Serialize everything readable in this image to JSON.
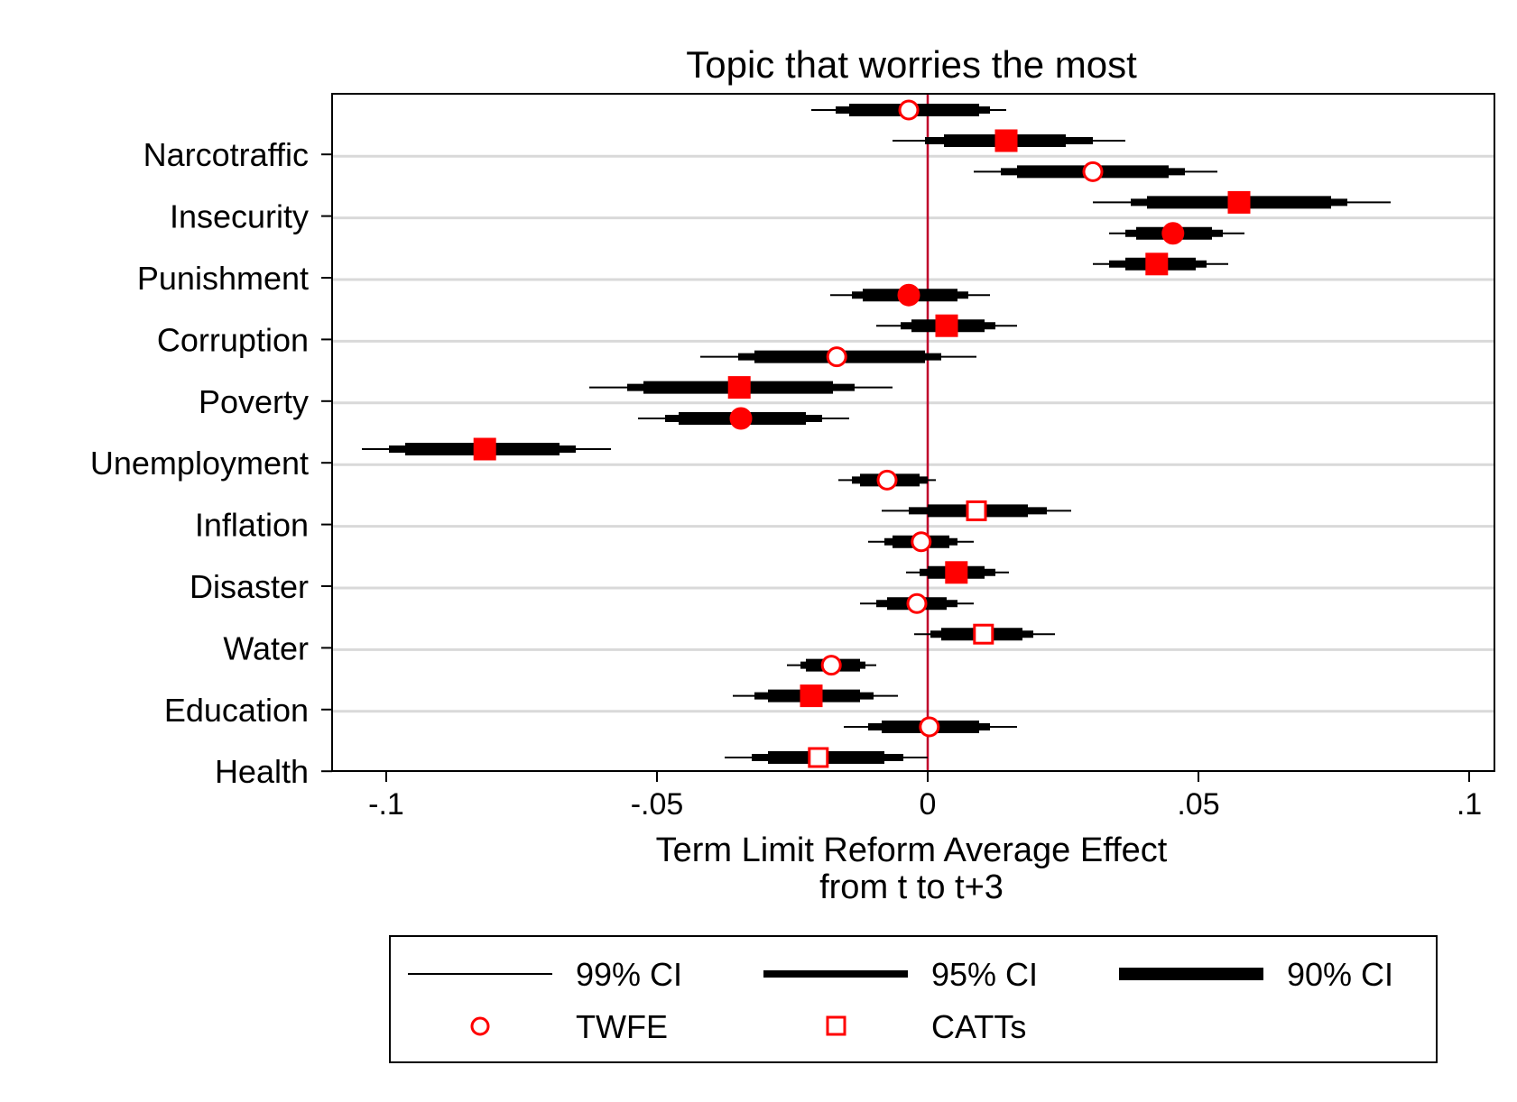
{
  "chart_data": {
    "type": "coefficient-plot",
    "title": "Topic that worries the most",
    "xlabel_line1": "Term Limit Reform Average Effect",
    "xlabel_line2": "from t to t+3",
    "ylabel": "",
    "xlim": [
      -0.11,
      0.104
    ],
    "x_ticks": [
      {
        "value": -0.1,
        "label": "-.1"
      },
      {
        "value": -0.05,
        "label": "-.05"
      },
      {
        "value": 0,
        "label": "0"
      },
      {
        "value": 0.05,
        "label": ".05"
      },
      {
        "value": 0.1,
        "label": ".1"
      }
    ],
    "reference_line": 0,
    "reference_line_color": "#c0002a",
    "marker_color": "#ff0000",
    "grid": "horizontal separators between categories",
    "legend_placement": "bottom",
    "categories": [
      "Narcotraffic",
      "Insecurity",
      "Punishment",
      "Corruption",
      "Poverty",
      "Unemployment",
      "Inflation",
      "Disaster",
      "Water",
      "Education",
      "Health"
    ],
    "series": [
      {
        "name": "TWFE",
        "marker": "circle",
        "points": [
          {
            "category": "Narcotraffic",
            "estimate": -0.0035,
            "ci90": [
              -0.0145,
              0.0095
            ],
            "ci95": [
              -0.017,
              0.0115
            ],
            "ci99": [
              -0.0215,
              0.0145
            ],
            "significant": false
          },
          {
            "category": "Insecurity",
            "estimate": 0.0305,
            "ci90": [
              0.0165,
              0.0445
            ],
            "ci95": [
              0.0135,
              0.0475
            ],
            "ci99": [
              0.0085,
              0.0535
            ],
            "significant": false
          },
          {
            "category": "Punishment",
            "estimate": 0.0453,
            "ci90": [
              0.0385,
              0.0525
            ],
            "ci95": [
              0.0365,
              0.0545
            ],
            "ci99": [
              0.0335,
              0.0585
            ],
            "significant": true
          },
          {
            "category": "Corruption",
            "estimate": -0.0035,
            "ci90": [
              -0.012,
              0.0055
            ],
            "ci95": [
              -0.014,
              0.0075
            ],
            "ci99": [
              -0.018,
              0.0115
            ],
            "significant": true
          },
          {
            "category": "Poverty",
            "estimate": -0.0168,
            "ci90": [
              -0.032,
              -0.0005
            ],
            "ci95": [
              -0.035,
              0.0025
            ],
            "ci99": [
              -0.042,
              0.009
            ],
            "significant": false
          },
          {
            "category": "Unemployment",
            "estimate": -0.0345,
            "ci90": [
              -0.046,
              -0.0225
            ],
            "ci95": [
              -0.0485,
              -0.0195
            ],
            "ci99": [
              -0.0535,
              -0.0145
            ],
            "significant": true
          },
          {
            "category": "Inflation",
            "estimate": -0.0075,
            "ci90": [
              -0.0125,
              -0.0015
            ],
            "ci95": [
              -0.014,
              0.0
            ],
            "ci99": [
              -0.0165,
              0.0015
            ],
            "significant": false
          },
          {
            "category": "Disaster",
            "estimate": -0.0012,
            "ci90": [
              -0.0065,
              0.004
            ],
            "ci95": [
              -0.008,
              0.0055
            ],
            "ci99": [
              -0.011,
              0.0085
            ],
            "significant": false
          },
          {
            "category": "Water",
            "estimate": -0.002,
            "ci90": [
              -0.0075,
              0.0035
            ],
            "ci95": [
              -0.0095,
              0.0055
            ],
            "ci99": [
              -0.0125,
              0.0085
            ],
            "significant": false
          },
          {
            "category": "Education",
            "estimate": -0.0178,
            "ci90": [
              -0.0225,
              -0.0125
            ],
            "ci95": [
              -0.0235,
              -0.0115
            ],
            "ci99": [
              -0.026,
              -0.0095
            ],
            "significant": false
          },
          {
            "category": "Health",
            "estimate": 0.0003,
            "ci90": [
              -0.0085,
              0.0095
            ],
            "ci95": [
              -0.011,
              0.0115
            ],
            "ci99": [
              -0.0155,
              0.0165
            ],
            "significant": false
          }
        ]
      },
      {
        "name": "CATTs",
        "marker": "square",
        "points": [
          {
            "category": "Narcotraffic",
            "estimate": 0.0145,
            "ci90": [
              0.003,
              0.0255
            ],
            "ci95": [
              -0.0005,
              0.0305
            ],
            "ci99": [
              -0.0065,
              0.0365
            ],
            "significant": true
          },
          {
            "category": "Insecurity",
            "estimate": 0.0575,
            "ci90": [
              0.0405,
              0.0745
            ],
            "ci95": [
              0.0375,
              0.0775
            ],
            "ci99": [
              0.0305,
              0.0855
            ],
            "significant": true
          },
          {
            "category": "Punishment",
            "estimate": 0.0423,
            "ci90": [
              0.0365,
              0.0495
            ],
            "ci95": [
              0.0335,
              0.0515
            ],
            "ci99": [
              0.0305,
              0.0555
            ],
            "significant": true
          },
          {
            "category": "Corruption",
            "estimate": 0.0035,
            "ci90": [
              -0.003,
              0.0105
            ],
            "ci95": [
              -0.005,
              0.0125
            ],
            "ci99": [
              -0.0095,
              0.0165
            ],
            "significant": true
          },
          {
            "category": "Poverty",
            "estimate": -0.0348,
            "ci90": [
              -0.0525,
              -0.0175
            ],
            "ci95": [
              -0.0555,
              -0.0135
            ],
            "ci99": [
              -0.0625,
              -0.0065
            ],
            "significant": true
          },
          {
            "category": "Unemployment",
            "estimate": -0.0818,
            "ci90": [
              -0.0965,
              -0.068
            ],
            "ci95": [
              -0.0995,
              -0.065
            ],
            "ci99": [
              -0.1045,
              -0.0585
            ],
            "significant": true
          },
          {
            "category": "Inflation",
            "estimate": 0.009,
            "ci90": [
              0.0,
              0.0185
            ],
            "ci95": [
              -0.0035,
              0.022
            ],
            "ci99": [
              -0.0085,
              0.0265
            ],
            "significant": false
          },
          {
            "category": "Disaster",
            "estimate": 0.0053,
            "ci90": [
              0.0,
              0.0105
            ],
            "ci95": [
              -0.0015,
              0.0125
            ],
            "ci99": [
              -0.004,
              0.015
            ],
            "significant": true
          },
          {
            "category": "Water",
            "estimate": 0.0103,
            "ci90": [
              0.0025,
              0.0175
            ],
            "ci95": [
              0.0005,
              0.0195
            ],
            "ci99": [
              -0.0025,
              0.0235
            ],
            "significant": false
          },
          {
            "category": "Education",
            "estimate": -0.0215,
            "ci90": [
              -0.0295,
              -0.0125
            ],
            "ci95": [
              -0.032,
              -0.01
            ],
            "ci99": [
              -0.036,
              -0.0055
            ],
            "significant": true
          },
          {
            "category": "Health",
            "estimate": -0.0202,
            "ci90": [
              -0.0295,
              -0.008
            ],
            "ci95": [
              -0.0325,
              -0.0045
            ],
            "ci99": [
              -0.0375,
              0.0
            ],
            "significant": false
          }
        ]
      }
    ],
    "legend": {
      "ci99": "99% CI",
      "ci95": "95% CI",
      "ci90": "90% CI",
      "twfe": "TWFE",
      "catts": "CATTs"
    }
  }
}
